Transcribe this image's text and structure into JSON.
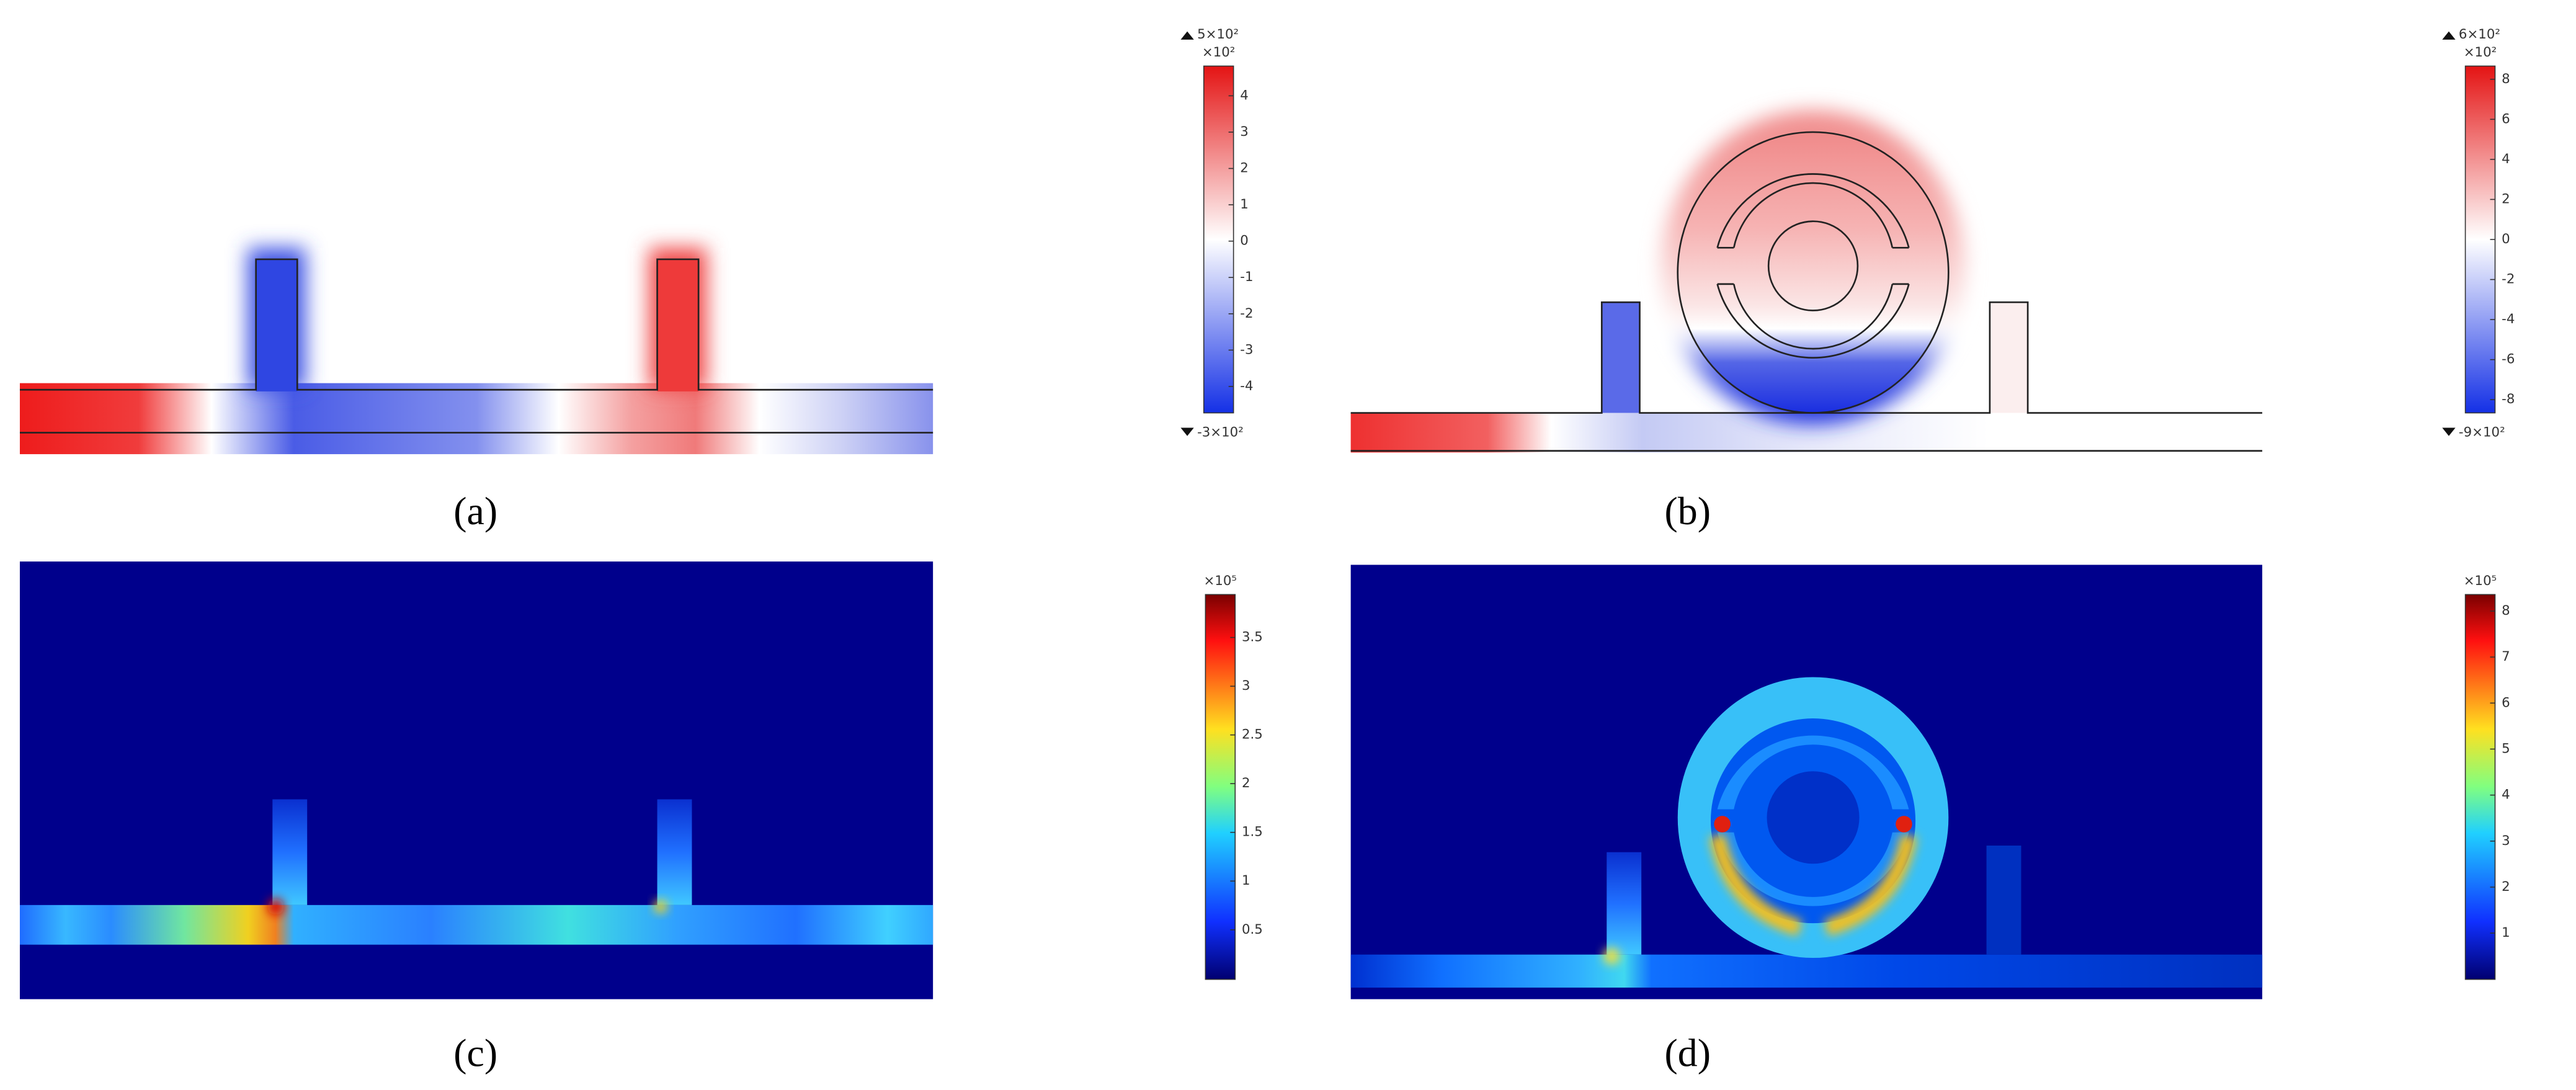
{
  "panels": [
    {
      "label": "(a)",
      "colorbar": {
        "max_label": "5×10²",
        "multiplier": "×10²",
        "ticks": [
          4,
          3,
          2,
          1,
          0,
          -1,
          -2,
          -3,
          -4
        ],
        "min_label": "-3×10²"
      }
    },
    {
      "label": "(b)",
      "colorbar": {
        "max_label": "6×10²",
        "multiplier": "×10²",
        "ticks": [
          8,
          6,
          4,
          2,
          0,
          -2,
          -4,
          -6,
          -8
        ],
        "min_label": "-9×10²"
      }
    },
    {
      "label": "(c)",
      "colorbar": {
        "multiplier": "×10⁵",
        "ticks": [
          3.5,
          3,
          2.5,
          2,
          1.5,
          1,
          0.5
        ]
      }
    },
    {
      "label": "(d)",
      "colorbar": {
        "multiplier": "×10⁵",
        "ticks": [
          8,
          7,
          6,
          5,
          4,
          3,
          2,
          1
        ]
      }
    }
  ]
}
